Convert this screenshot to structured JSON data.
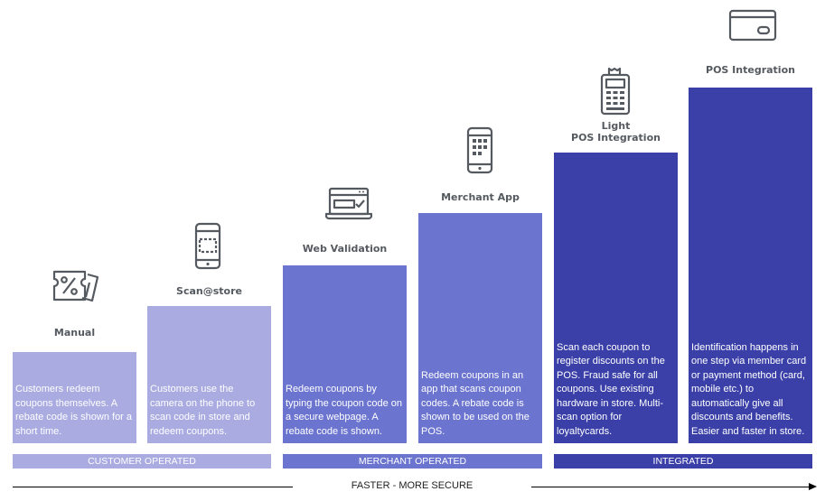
{
  "stages": [
    {
      "title": "Manual",
      "icon": "coupon-icon",
      "description": "Customers redeem coupons themselves. A rebate code is shown for a short time.",
      "color": "#a9abe1"
    },
    {
      "title": "Scan@store",
      "icon": "phone-scan-icon",
      "description": "Customers use the camera on the phone to scan code in store and redeem coupons.",
      "color": "#a9abe1"
    },
    {
      "title": "Web Validation",
      "icon": "browser-check-icon",
      "description": "Redeem coupons by typing the coupon code on a secure webpage. A rebate code is shown.",
      "color": "#6b74cf"
    },
    {
      "title": "Merchant App",
      "icon": "phone-app-icon",
      "description": "Redeem coupons in an app that scans coupon codes. A rebate code is shown to be used on the POS.",
      "color": "#6b74cf"
    },
    {
      "title": "Light\nPOS Integration",
      "icon": "pos-terminal-icon",
      "description": "Scan each coupon to register discounts on the POS. Fraud safe for all coupons. Use existing hardware in store. Multi-scan option for loyaltycards.",
      "color": "#3a40a8"
    },
    {
      "title": "POS Integration",
      "icon": "credit-card-icon",
      "description": "Identification happens in one step via member card or payment method (card, mobile etc.) to automatically give all discounts and benefits. Easier and faster in store.",
      "color": "#3a40a8"
    }
  ],
  "groups": [
    {
      "label": "CUSTOMER OPERATED",
      "color": "#a9abe1"
    },
    {
      "label": "MERCHANT OPERATED",
      "color": "#6b74cf"
    },
    {
      "label": "INTEGRATED",
      "color": "#3a40a8"
    }
  ],
  "axis": {
    "label": "FASTER - MORE SECURE"
  }
}
